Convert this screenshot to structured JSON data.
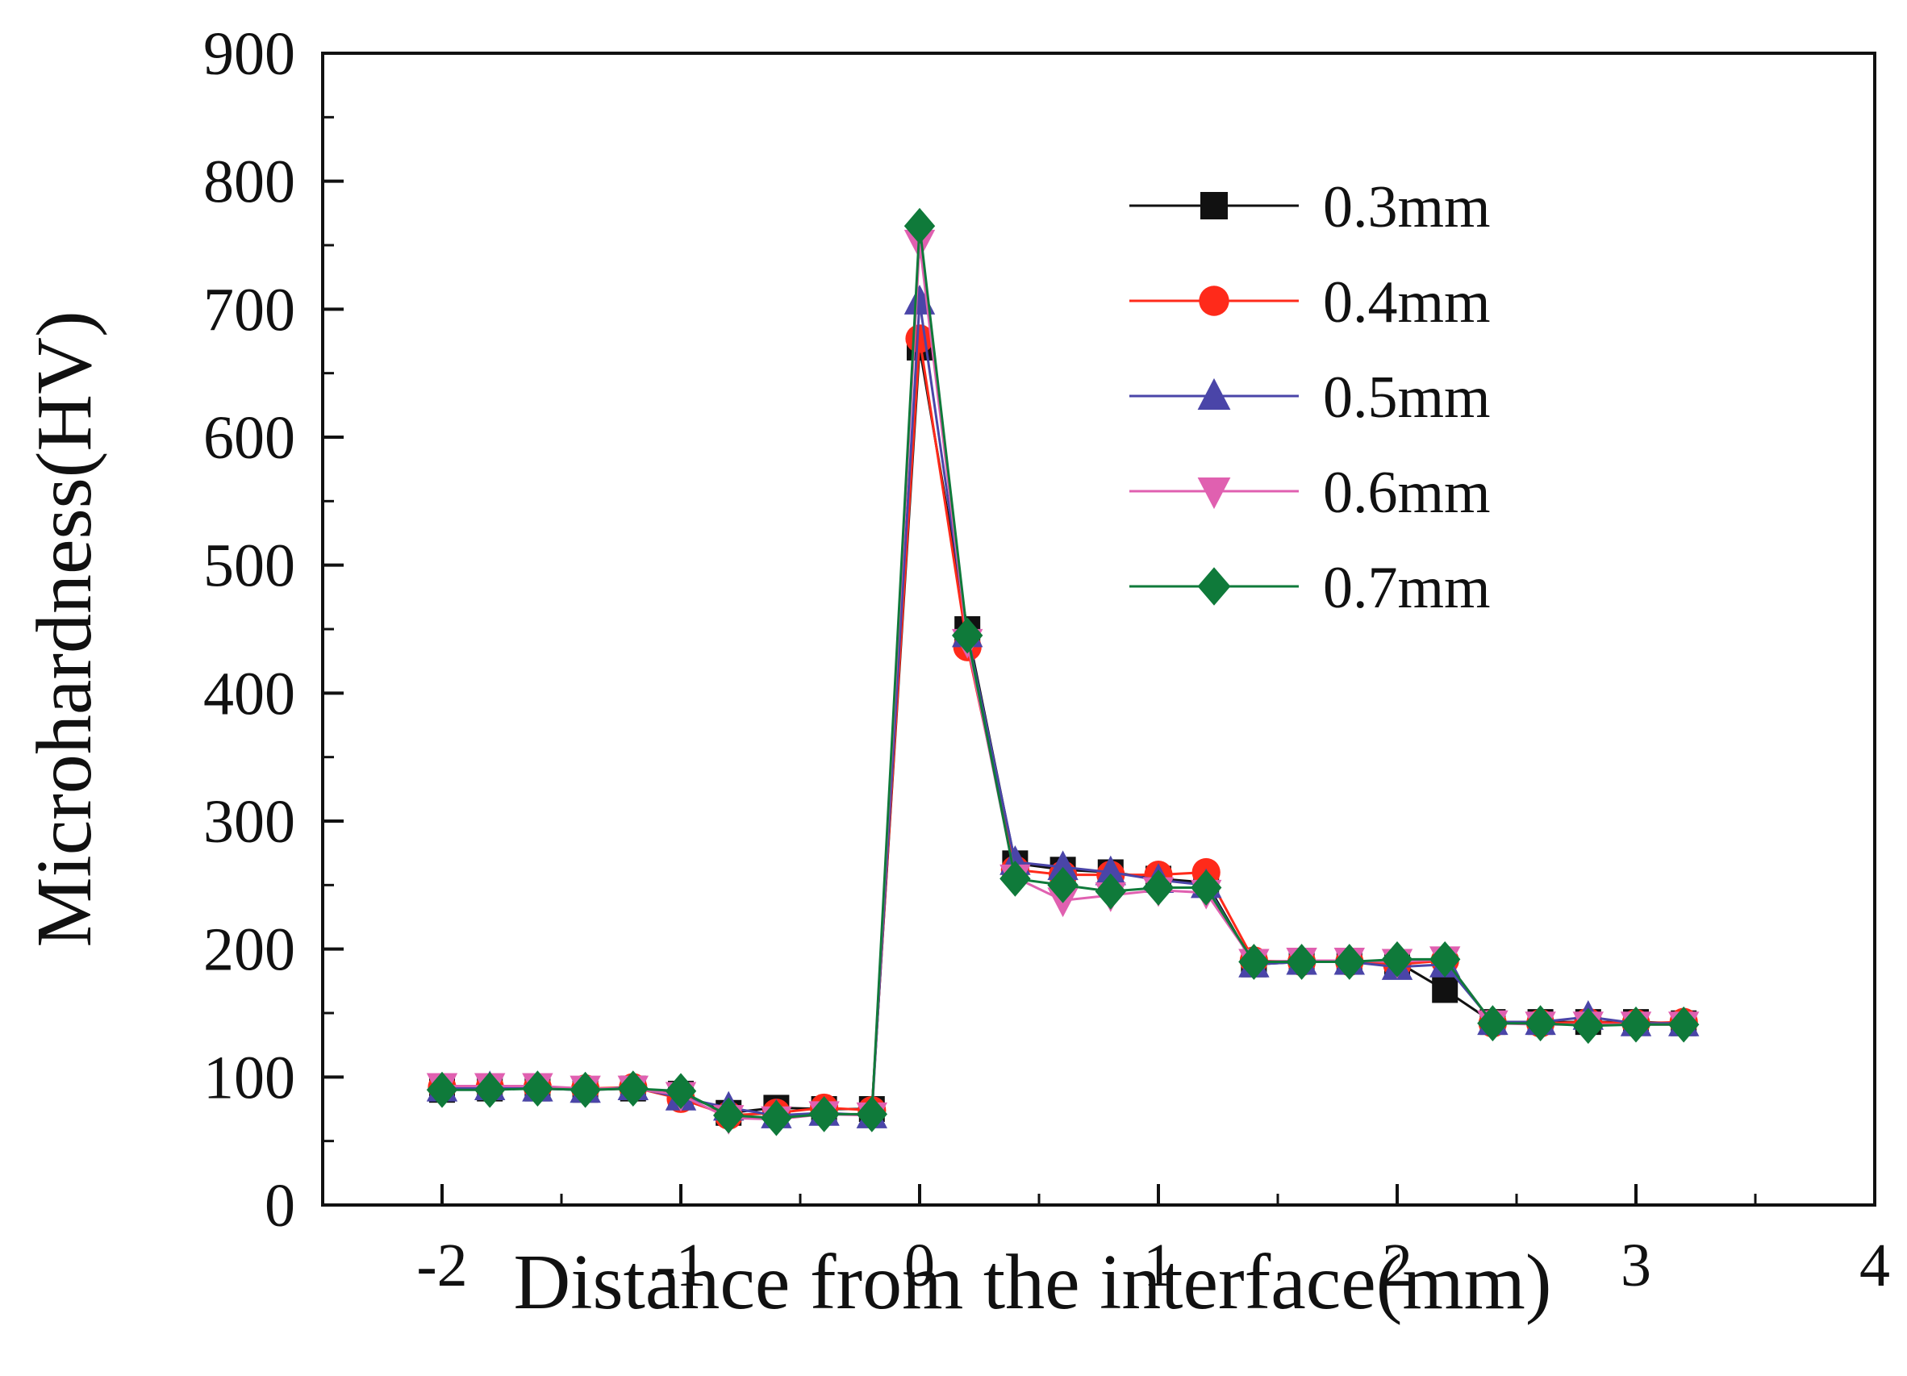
{
  "chart_data": {
    "type": "line",
    "title": "",
    "xlabel": "Distance from the interface(mm)",
    "ylabel": "Microhardness(HV)",
    "xlim": [
      -2.5,
      4
    ],
    "ylim": [
      0,
      900
    ],
    "xticks": [
      -2,
      -1,
      0,
      1,
      2,
      3,
      4
    ],
    "xtick_labels": [
      "-2",
      "-1",
      "0",
      "1",
      "2",
      "3",
      "4"
    ],
    "yticks": [
      0,
      100,
      200,
      300,
      400,
      500,
      600,
      700,
      800,
      900
    ],
    "ytick_labels": [
      "0",
      "100",
      "200",
      "300",
      "400",
      "500",
      "600",
      "700",
      "800",
      "900"
    ],
    "grid": false,
    "legend_position": "top-right",
    "x": [
      -2,
      -1.8,
      -1.6,
      -1.4,
      -1.2,
      -1,
      -0.8,
      -0.6,
      -0.4,
      -0.2,
      0,
      0.2,
      0.4,
      0.6,
      0.8,
      1,
      1.2,
      1.4,
      1.6,
      1.8,
      2,
      2.2,
      2.4,
      2.6,
      2.8,
      3,
      3.2
    ],
    "series": [
      {
        "name": "0.3mm",
        "color": "#111111",
        "marker": "square",
        "values": [
          90,
          91,
          91,
          90,
          91,
          87,
          72,
          76,
          75,
          75,
          670,
          450,
          267,
          262,
          260,
          255,
          252,
          188,
          190,
          190,
          190,
          168,
          143,
          143,
          143,
          143,
          142
        ]
      },
      {
        "name": "0.4mm",
        "color": "#ff2a1a",
        "marker": "circle",
        "values": [
          92,
          92,
          92,
          91,
          92,
          83,
          70,
          72,
          76,
          74,
          677,
          436,
          262,
          258,
          258,
          258,
          260,
          191,
          190,
          190,
          188,
          191,
          142,
          142,
          143,
          142,
          143
        ]
      },
      {
        "name": "0.5mm",
        "color": "#4a45a8",
        "marker": "triangle-up",
        "values": [
          91,
          92,
          91,
          90,
          92,
          84,
          76,
          70,
          72,
          70,
          706,
          446,
          268,
          264,
          260,
          254,
          250,
          188,
          190,
          190,
          186,
          188,
          143,
          143,
          147,
          142,
          142
        ]
      },
      {
        "name": "0.6mm",
        "color": "#e060b0",
        "marker": "triangle-down",
        "values": [
          93,
          93,
          93,
          91,
          91,
          86,
          68,
          67,
          71,
          70,
          752,
          440,
          256,
          238,
          242,
          246,
          244,
          190,
          191,
          191,
          190,
          192,
          142,
          141,
          141,
          141,
          141
        ]
      },
      {
        "name": "0.7mm",
        "color": "#0f7a3a",
        "marker": "diamond",
        "values": [
          90,
          90,
          91,
          90,
          91,
          89,
          70,
          68,
          71,
          71,
          765,
          445,
          255,
          250,
          245,
          248,
          248,
          190,
          190,
          190,
          192,
          192,
          142,
          142,
          140,
          141,
          141
        ]
      }
    ]
  }
}
